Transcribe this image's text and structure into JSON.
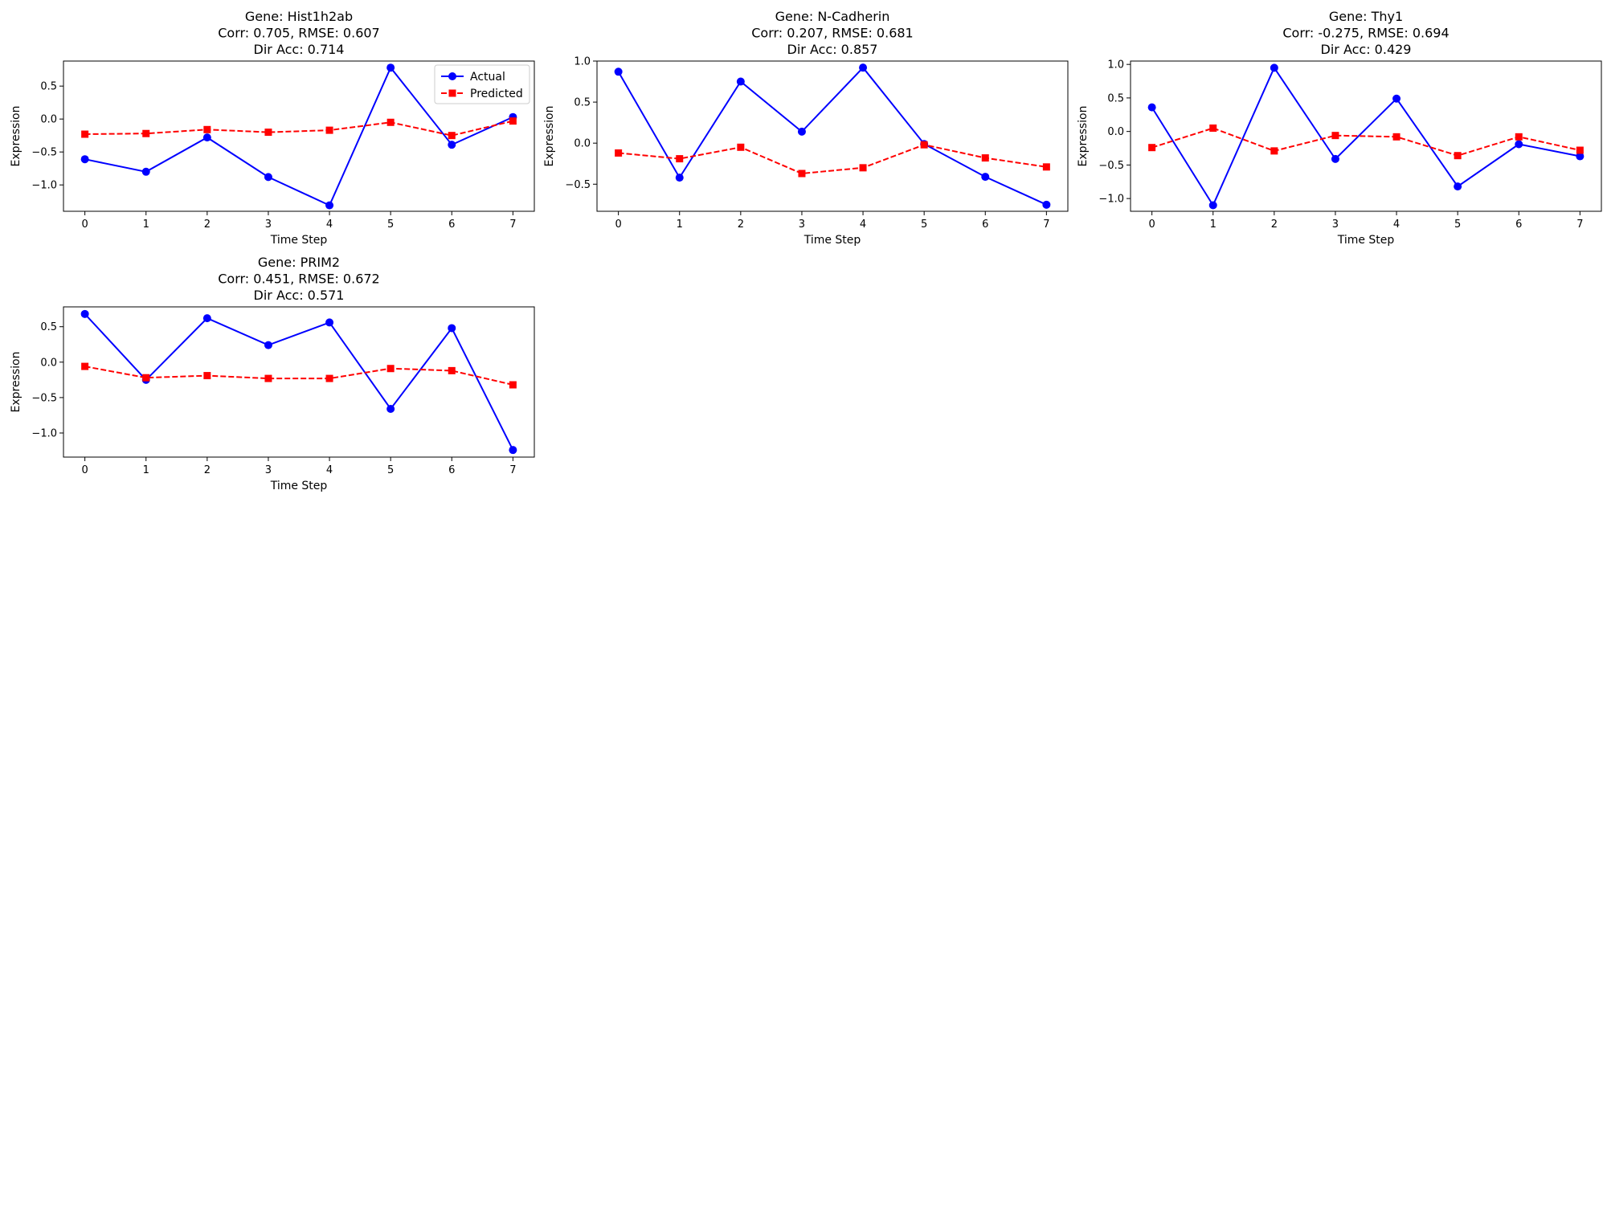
{
  "chart_data": [
    {
      "type": "line",
      "title_lines": [
        "Gene: Hist1h2ab",
        "Corr: 0.705, RMSE: 0.607",
        "Dir Acc: 0.714"
      ],
      "xlabel": "Time Step",
      "ylabel": "Expression",
      "x": [
        0,
        1,
        2,
        3,
        4,
        5,
        6,
        7
      ],
      "xlim": [
        -0.35,
        7.35
      ],
      "ylim": [
        -1.4,
        0.88
      ],
      "yticks": [
        -1.0,
        -0.5,
        0.0,
        0.5
      ],
      "ytick_labels": [
        "−1.0",
        "−0.5",
        "0.0",
        "0.5"
      ],
      "legend": "top-right",
      "series": [
        {
          "name": "Actual",
          "color": "#0000ff",
          "marker": "circle",
          "style": "solid",
          "values": [
            -0.61,
            -0.8,
            -0.28,
            -0.88,
            -1.31,
            0.78,
            -0.39,
            0.03
          ]
        },
        {
          "name": "Predicted",
          "color": "#ff0000",
          "marker": "square",
          "style": "dashed",
          "values": [
            -0.23,
            -0.22,
            -0.16,
            -0.2,
            -0.17,
            -0.05,
            -0.25,
            -0.03
          ]
        }
      ]
    },
    {
      "type": "line",
      "title_lines": [
        "Gene: N-Cadherin",
        "Corr: 0.207, RMSE: 0.681",
        "Dir Acc: 0.857"
      ],
      "xlabel": "Time Step",
      "ylabel": "Expression",
      "x": [
        0,
        1,
        2,
        3,
        4,
        5,
        6,
        7
      ],
      "xlim": [
        -0.35,
        7.35
      ],
      "ylim": [
        -0.83,
        1.0
      ],
      "yticks": [
        -0.5,
        0.0,
        0.5,
        1.0
      ],
      "ytick_labels": [
        "−0.5",
        "0.0",
        "0.5",
        "1.0"
      ],
      "legend": "",
      "series": [
        {
          "color": "#0000ff",
          "marker": "circle",
          "style": "solid",
          "values": [
            0.87,
            -0.42,
            0.75,
            0.14,
            0.92,
            -0.01,
            -0.41,
            -0.75
          ]
        },
        {
          "color": "#ff0000",
          "marker": "square",
          "style": "dashed",
          "values": [
            -0.12,
            -0.19,
            -0.05,
            -0.37,
            -0.3,
            -0.02,
            -0.18,
            -0.29
          ]
        }
      ]
    },
    {
      "type": "line",
      "title_lines": [
        "Gene: Thy1",
        "Corr: -0.275, RMSE: 0.694",
        "Dir Acc: 0.429"
      ],
      "xlabel": "Time Step",
      "ylabel": "Expression",
      "x": [
        0,
        1,
        2,
        3,
        4,
        5,
        6,
        7
      ],
      "xlim": [
        -0.35,
        7.35
      ],
      "ylim": [
        -1.19,
        1.05
      ],
      "yticks": [
        -1.0,
        -0.5,
        0.0,
        0.5,
        1.0
      ],
      "ytick_labels": [
        "−1.0",
        "−0.5",
        "0.0",
        "0.5",
        "1.0"
      ],
      "legend": "",
      "series": [
        {
          "color": "#0000ff",
          "marker": "circle",
          "style": "solid",
          "values": [
            0.36,
            -1.1,
            0.95,
            -0.41,
            0.49,
            -0.82,
            -0.19,
            -0.37
          ]
        },
        {
          "color": "#ff0000",
          "marker": "square",
          "style": "dashed",
          "values": [
            -0.24,
            0.05,
            -0.29,
            -0.06,
            -0.08,
            -0.36,
            -0.08,
            -0.28
          ]
        }
      ]
    },
    {
      "type": "line",
      "title_lines": [
        "Gene: PRIM2",
        "Corr: 0.451, RMSE: 0.672",
        "Dir Acc: 0.571"
      ],
      "xlabel": "Time Step",
      "ylabel": "Expression",
      "x": [
        0,
        1,
        2,
        3,
        4,
        5,
        6,
        7
      ],
      "xlim": [
        -0.35,
        7.35
      ],
      "ylim": [
        -1.34,
        0.78
      ],
      "yticks": [
        -1.0,
        -0.5,
        0.0,
        0.5
      ],
      "ytick_labels": [
        "−1.0",
        "−0.5",
        "0.0",
        "0.5"
      ],
      "legend": "",
      "series": [
        {
          "color": "#0000ff",
          "marker": "circle",
          "style": "solid",
          "values": [
            0.68,
            -0.25,
            0.62,
            0.24,
            0.56,
            -0.66,
            0.48,
            -1.24
          ]
        },
        {
          "color": "#ff0000",
          "marker": "square",
          "style": "dashed",
          "values": [
            -0.06,
            -0.22,
            -0.19,
            -0.23,
            -0.23,
            -0.09,
            -0.12,
            -0.32
          ]
        }
      ]
    }
  ]
}
